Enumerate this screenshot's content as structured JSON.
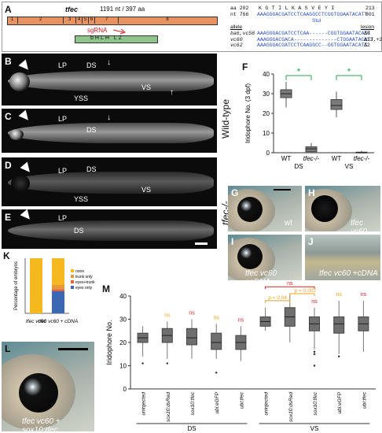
{
  "panel_A": {
    "letter": "A",
    "gene": "tfec",
    "length": "1191 nt / 397 aa",
    "exons": [
      "1",
      "2",
      "3",
      "4",
      "5",
      "6",
      "7",
      "8"
    ],
    "sgrna": "sgRNA",
    "domains": "bHLH LZ",
    "aa_line": "aa 202",
    "aa_seq": "K G T I L K A S V E Y I",
    "aa_end": "213",
    "nt_line": "nt 766",
    "nt_seq": "AAAGGGACGATCCTCAAGGCCTCGGTGGAATACATT",
    "nt_end": "801",
    "stu": "StuI",
    "allele_hdr": "allele",
    "lesion_hdr": "lesion",
    "alleles": [
      {
        "name": "ba6,vc58",
        "seq": "AAAGGGACGATCCTCAA------CGGTGGAATACATT",
        "lesion": "Δ6"
      },
      {
        "name": "vc60",
        "seq": "AAAGGGACGACA--------------CTGGAATACATT",
        "lesion": "Δ13,+2"
      },
      {
        "name": "vc62",
        "seq": "AAAGGGACGATCCTCAAGGCC--GGTGGAATACATT",
        "lesion": "Δ2"
      }
    ]
  },
  "fish_panels": {
    "B": {
      "letter": "B",
      "labels": [
        "LP",
        "DS",
        "VS",
        "YSS"
      ]
    },
    "C": {
      "letter": "C",
      "labels": [
        "LP",
        "DS"
      ]
    },
    "D": {
      "letter": "D",
      "labels": [
        "LP",
        "DS",
        "VS",
        "YSS"
      ]
    },
    "E": {
      "letter": "E",
      "labels": [
        "LP",
        "DS"
      ]
    },
    "wildtype_side": "Wild-type",
    "mutant_side": "tfec-/-"
  },
  "panel_F": {
    "letter": "F",
    "ylabel": "Iridophore No. (3 dpf)",
    "sig": "*",
    "chart_data": {
      "type": "box",
      "categories": [
        "WT",
        "tfec-/-",
        "WT",
        "tfec-/-"
      ],
      "groups": [
        "DS",
        "DS",
        "VS",
        "VS"
      ],
      "ylim": [
        0,
        40
      ],
      "yticks": [
        0,
        10,
        20,
        30,
        40
      ],
      "boxes": [
        {
          "min": 23,
          "q1": 28,
          "median": 30,
          "q3": 32,
          "max": 36
        },
        {
          "min": 0,
          "q1": 0.5,
          "median": 2,
          "q3": 3,
          "max": 5
        },
        {
          "min": 18,
          "q1": 22,
          "median": 24,
          "q3": 27,
          "max": 31
        },
        {
          "min": 0,
          "q1": 0,
          "median": 0,
          "q3": 0.3,
          "max": 1
        }
      ],
      "group_labels": [
        "DS",
        "VS"
      ]
    }
  },
  "photo_panels": {
    "G": {
      "letter": "G",
      "caption": "wt"
    },
    "H": {
      "letter": "H",
      "caption": "tfec vc60"
    },
    "I": {
      "letter": "I",
      "caption": "tfec vc60 +cDNA"
    },
    "J": {
      "letter": "J",
      "caption": "tfec vc60 +cDNA"
    },
    "L": {
      "letter": "L",
      "caption": "tfec vc60 + sox10:tfec"
    }
  },
  "panel_K": {
    "letter": "K",
    "ylabel": "Percentage of embryos",
    "legend": [
      "none",
      "trunk only",
      "eyes+trunk",
      "eyes only"
    ],
    "legend_colors": [
      "#f5b81e",
      "#e59a36",
      "#e4643e",
      "#3b68b3"
    ],
    "chart_data": {
      "type": "bar",
      "stacked": true,
      "categories": [
        "tfec vc60",
        "tfec vc60 + cDNA"
      ],
      "series": [
        {
          "name": "eyes only",
          "values": [
            0,
            40
          ]
        },
        {
          "name": "eyes+trunk",
          "values": [
            0,
            4
          ]
        },
        {
          "name": "trunk only",
          "values": [
            0,
            8
          ]
        },
        {
          "name": "none",
          "values": [
            100,
            48
          ]
        }
      ],
      "ylim": [
        0,
        100
      ]
    }
  },
  "panel_M": {
    "letter": "M",
    "ylabel": "Iridophore No.",
    "p1": "p = 0.04",
    "p2": "p = 0.002",
    "ns": "ns",
    "group_labels": [
      "DS",
      "VS"
    ],
    "chart_data": {
      "type": "box",
      "categories": [
        "uninjected",
        "sox10:dsRed",
        "sox10:tfec",
        "ubi:eGFP",
        "ubi:tfec",
        "uninjected",
        "sox10:dsRed",
        "sox10:tfec",
        "ubi:eGFP",
        "ubi:tfec"
      ],
      "groups": [
        "DS",
        "DS",
        "DS",
        "DS",
        "DS",
        "VS",
        "VS",
        "VS",
        "VS",
        "VS"
      ],
      "ylim": [
        0,
        40
      ],
      "yticks": [
        0,
        10,
        20,
        30,
        40
      ],
      "boxes": [
        {
          "min": 14,
          "q1": 20,
          "median": 22,
          "q3": 24,
          "max": 27
        },
        {
          "min": 13,
          "q1": 20,
          "median": 23,
          "q3": 26,
          "max": 29
        },
        {
          "min": 13,
          "q1": 19,
          "median": 22,
          "q3": 26,
          "max": 30
        },
        {
          "min": 13,
          "q1": 17,
          "median": 20,
          "q3": 24,
          "max": 28
        },
        {
          "min": 12,
          "q1": 17,
          "median": 20,
          "q3": 23,
          "max": 27
        },
        {
          "min": 25,
          "q1": 27,
          "median": 29,
          "q3": 31,
          "max": 35
        },
        {
          "min": 20,
          "q1": 27,
          "median": 31,
          "q3": 35,
          "max": 41
        },
        {
          "min": 17,
          "q1": 25,
          "median": 28,
          "q3": 31,
          "max": 35
        },
        {
          "min": 15,
          "q1": 24,
          "median": 28,
          "q3": 31,
          "max": 38
        },
        {
          "min": 16,
          "q1": 25,
          "median": 28,
          "q3": 31,
          "max": 38
        }
      ],
      "outliers": [
        [
          0,
          11
        ],
        [
          1,
          11
        ],
        [
          3,
          7
        ],
        [
          7,
          10
        ],
        [
          7,
          15
        ],
        [
          7,
          16
        ],
        [
          8,
          14
        ]
      ],
      "annotations": [
        {
          "idx": 1,
          "text": "ns",
          "color": "#f0a020"
        },
        {
          "idx": 2,
          "text": "ns",
          "color": "#e02020"
        },
        {
          "idx": 3,
          "text": "ns",
          "color": "#f0a020"
        },
        {
          "idx": 4,
          "text": "ns",
          "color": "#e02020"
        },
        {
          "idx": 7,
          "text": "ns",
          "color": "#e02020"
        },
        {
          "idx": 8,
          "text": "ns",
          "color": "#f0a020"
        },
        {
          "idx": 9,
          "text": "ns",
          "color": "#e02020"
        }
      ]
    }
  },
  "colors": {
    "accent_red": "#e02020",
    "accent_orange": "#f0a020",
    "sig_green": "#2aa84a",
    "exon": "#e8925f",
    "blue_seq": "#2c52c8"
  }
}
